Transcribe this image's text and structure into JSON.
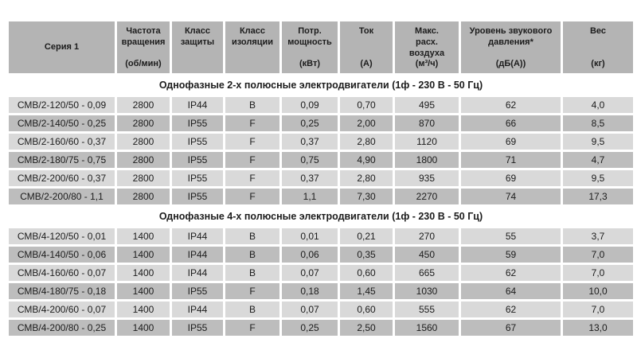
{
  "table": {
    "headers": [
      {
        "label": "Серия 1",
        "unit": ""
      },
      {
        "label": "Частота\nвращения",
        "unit": "(об/мин)"
      },
      {
        "label": "Класс\nзащиты",
        "unit": ""
      },
      {
        "label": "Класс\nизоляции",
        "unit": ""
      },
      {
        "label": "Потр.\nмощность",
        "unit": "(кВт)"
      },
      {
        "label": "Ток",
        "unit": "(А)"
      },
      {
        "label": "Макс.\nрасх.\nвоздуха",
        "unit": "(м³/ч)"
      },
      {
        "label": "Уровень звукового\nдавления*",
        "unit": "(дБ(А))"
      },
      {
        "label": "Вес",
        "unit": "(кг)"
      }
    ],
    "sections": [
      {
        "title": "Однофазные 2-х полюсные электродвигатели (1ф - 230 В - 50 Гц)",
        "rows": [
          [
            "СМВ/2-120/50 - 0,09",
            "2800",
            "IP44",
            "B",
            "0,09",
            "0,70",
            "495",
            "62",
            "4,0"
          ],
          [
            "СМВ/2-140/50 - 0,25",
            "2800",
            "IP55",
            "F",
            "0,25",
            "2,00",
            "870",
            "66",
            "8,5"
          ],
          [
            "СМВ/2-160/60 - 0,37",
            "2800",
            "IP55",
            "F",
            "0,37",
            "2,80",
            "1120",
            "69",
            "9,5"
          ],
          [
            "СМВ/2-180/75 - 0,75",
            "2800",
            "IP55",
            "F",
            "0,75",
            "4,90",
            "1800",
            "71",
            "4,7"
          ],
          [
            "СМВ/2-200/60 - 0,37",
            "2800",
            "IP55",
            "F",
            "0,37",
            "2,80",
            "935",
            "69",
            "9,5"
          ],
          [
            "СМВ/2-200/80 - 1,1",
            "2800",
            "IP55",
            "F",
            "1,1",
            "7,30",
            "2270",
            "74",
            "17,3"
          ]
        ]
      },
      {
        "title": "Однофазные 4-х полюсные электродвигатели (1ф - 230 В - 50 Гц)",
        "rows": [
          [
            "СМВ/4-120/50 - 0,01",
            "1400",
            "IP44",
            "B",
            "0,01",
            "0,21",
            "270",
            "55",
            "3,7"
          ],
          [
            "СМВ/4-140/50 - 0,06",
            "1400",
            "IP44",
            "B",
            "0,06",
            "0,35",
            "450",
            "59",
            "7,0"
          ],
          [
            "СМВ/4-160/60 - 0,07",
            "1400",
            "IP44",
            "B",
            "0,07",
            "0,60",
            "665",
            "62",
            "7,0"
          ],
          [
            "СМВ/4-180/75 - 0,18",
            "1400",
            "IP55",
            "F",
            "0,18",
            "1,45",
            "1030",
            "64",
            "10,0"
          ],
          [
            "СМВ/4-200/60 - 0,07",
            "1400",
            "IP44",
            "B",
            "0,07",
            "0,60",
            "555",
            "62",
            "7,0"
          ],
          [
            "СМВ/4-200/80 - 0,25",
            "1400",
            "IP55",
            "F",
            "0,25",
            "2,50",
            "1560",
            "67",
            "13,0"
          ]
        ]
      }
    ]
  },
  "colors": {
    "header_bg": "#b4b4b4",
    "row_light": "#d9d9d9",
    "row_dark": "#bdbdbd",
    "background": "#ffffff",
    "text": "#1c1c1c"
  }
}
